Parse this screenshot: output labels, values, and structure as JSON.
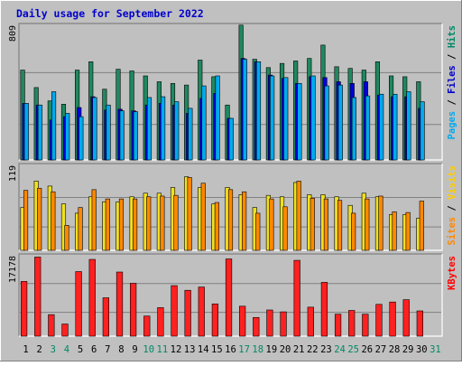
{
  "chart_data": {
    "type": "bar",
    "title": "Daily usage for September 2022",
    "categories": [
      "1",
      "2",
      "3",
      "4",
      "5",
      "6",
      "7",
      "8",
      "9",
      "10",
      "11",
      "12",
      "13",
      "14",
      "15",
      "16",
      "17",
      "18",
      "19",
      "20",
      "21",
      "22",
      "23",
      "24",
      "25",
      "26",
      "27",
      "28",
      "29",
      "30",
      "31"
    ],
    "weekend_days": [
      "3",
      "4",
      "10",
      "11",
      "17",
      "18",
      "24",
      "25",
      "31"
    ],
    "panels": [
      {
        "id": "hits-panel",
        "max_label": "809",
        "ylim": [
          0,
          809
        ],
        "axis_label_parts": [
          {
            "text": "Pages",
            "color": "#00aaee"
          },
          {
            "text": " / ",
            "color": "#000000"
          },
          {
            "text": "Files",
            "color": "#0000cc"
          },
          {
            "text": " / ",
            "color": "#000000"
          },
          {
            "text": "Hits",
            "color": "#008866"
          }
        ],
        "series": [
          {
            "name": "Hits",
            "color": "#208860",
            "values": [
              540,
              435,
              355,
              335,
              540,
              590,
              425,
              545,
              535,
              505,
              470,
              460,
              450,
              600,
              500,
              330,
              810,
              605,
              555,
              580,
              595,
              610,
              690,
              560,
              550,
              540,
              590,
              505,
              500,
              470,
              0
            ]
          },
          {
            "name": "Files",
            "color": "#0000dd",
            "values": [
              340,
              330,
              240,
              260,
              315,
              380,
              300,
              305,
              295,
              330,
              340,
              330,
              280,
              370,
              400,
              250,
              610,
              590,
              510,
              490,
              460,
              500,
              495,
              470,
              460,
              470,
              390,
              380,
              380,
              310,
              0
            ]
          },
          {
            "name": "Pages",
            "color": "#00aaee",
            "values": [
              340,
              330,
              410,
              280,
              260,
              375,
              330,
              295,
              290,
              375,
              380,
              350,
              310,
              445,
              505,
              250,
              605,
              590,
              505,
              495,
              460,
              505,
              445,
              450,
              375,
              385,
              395,
              395,
              410,
              350,
              0
            ]
          }
        ]
      },
      {
        "id": "visits-panel",
        "max_label": "119",
        "ylim": [
          0,
          119
        ],
        "axis_label_parts": [
          {
            "text": "Sites",
            "color": "#ff8800"
          },
          {
            "text": " / ",
            "color": "#000000"
          },
          {
            "text": "Visits",
            "color": "#ffcc00"
          }
        ],
        "series": [
          {
            "name": "Visits",
            "color": "#f0e020",
            "values": [
              60,
              97,
              90,
              65,
              52,
              75,
              68,
              68,
              75,
              80,
              80,
              88,
              103,
              88,
              65,
              88,
              78,
              60,
              77,
              75,
              95,
              78,
              78,
              75,
              63,
              80,
              75,
              50,
              50,
              45,
              0
            ]
          },
          {
            "name": "Sites",
            "color": "#ff8800",
            "values": [
              84,
              87,
              82,
              35,
              60,
              85,
              72,
              72,
              72,
              75,
              76,
              77,
              102,
              94,
              67,
              85,
              82,
              52,
              72,
              61,
              97,
              73,
              72,
              70,
              52,
              72,
              76,
              54,
              53,
              69,
              0
            ]
          }
        ]
      },
      {
        "id": "kbytes-panel",
        "max_label": "17178",
        "ylim": [
          0,
          17178
        ],
        "axis_label_parts": [
          {
            "text": "KBytes",
            "color": "#ff0000"
          }
        ],
        "series": [
          {
            "name": "KBytes",
            "color": "#ff2020",
            "values": [
              11700,
              16900,
              4600,
              2600,
              13800,
              16400,
              8200,
              13700,
              11300,
              4300,
              6100,
              10800,
              9800,
              10500,
              6900,
              16500,
              6400,
              4000,
              5600,
              5200,
              16200,
              6200,
              11500,
              4700,
              5500,
              4700,
              6800,
              7300,
              7800,
              5400,
              0
            ]
          }
        ]
      }
    ]
  }
}
